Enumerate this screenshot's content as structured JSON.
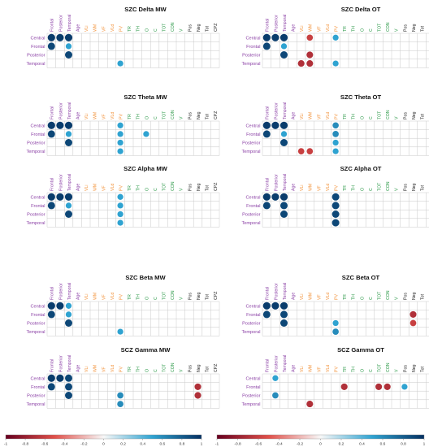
{
  "colors": {
    "purple": "#8a3fa5",
    "orange": "#f2923a",
    "green": "#2e9a4a",
    "black": "#222222",
    "grid": "#c9c9c9",
    "cb_neg_strong": "#67001f",
    "cb_neg_mid": "#e0504a",
    "cb_zero": "#f7f7f7",
    "cb_pos_mid": "#2fa3d1",
    "cb_pos_strong": "#053061"
  },
  "rows": [
    "Central",
    "Frontal",
    "Posterior",
    "Temporal"
  ],
  "columns": [
    {
      "label": "Frontal",
      "group": "purple"
    },
    {
      "label": "Posterior",
      "group": "purple"
    },
    {
      "label": "Temporal",
      "group": "purple"
    },
    {
      "label": "Age",
      "group": "purple"
    },
    {
      "label": "VLi",
      "group": "orange"
    },
    {
      "label": "WM",
      "group": "orange"
    },
    {
      "label": "VF",
      "group": "orange"
    },
    {
      "label": "VLd",
      "group": "orange"
    },
    {
      "label": "PV",
      "group": "orange"
    },
    {
      "label": "TR",
      "group": "green"
    },
    {
      "label": "TH",
      "group": "green"
    },
    {
      "label": "O",
      "group": "green"
    },
    {
      "label": "C",
      "group": "green"
    },
    {
      "label": "TOT",
      "group": "green"
    },
    {
      "label": "CON",
      "group": "green"
    },
    {
      "label": "V",
      "group": "green"
    },
    {
      "label": "Pos",
      "group": "black"
    },
    {
      "label": "Neg",
      "group": "black"
    },
    {
      "label": "Tot",
      "group": "black"
    },
    {
      "label": "CPZ",
      "group": "black"
    }
  ],
  "chart_data": [
    {
      "type": "heatmap",
      "title": "SZC Delta MW",
      "cells": [
        {
          "row": "Central",
          "col": "Frontal",
          "r": 0.95
        },
        {
          "row": "Central",
          "col": "Posterior",
          "r": 0.95
        },
        {
          "row": "Central",
          "col": "Temporal",
          "r": 0.95
        },
        {
          "row": "Frontal",
          "col": "Frontal",
          "r": 0.9
        },
        {
          "row": "Frontal",
          "col": "Temporal",
          "r": 0.5
        },
        {
          "row": "Posterior",
          "col": "Temporal",
          "r": 0.9
        },
        {
          "row": "Temporal",
          "col": "PV",
          "r": 0.5
        }
      ]
    },
    {
      "type": "heatmap",
      "title": "SZC Delta OT",
      "cells": [
        {
          "row": "Central",
          "col": "Frontal",
          "r": 0.95
        },
        {
          "row": "Central",
          "col": "Posterior",
          "r": 0.95
        },
        {
          "row": "Central",
          "col": "Temporal",
          "r": 0.95
        },
        {
          "row": "Central",
          "col": "WM",
          "r": -0.6
        },
        {
          "row": "Central",
          "col": "PV",
          "r": 0.5
        },
        {
          "row": "Frontal",
          "col": "Frontal",
          "r": 0.9
        },
        {
          "row": "Frontal",
          "col": "Temporal",
          "r": 0.5
        },
        {
          "row": "Posterior",
          "col": "Temporal",
          "r": 0.9
        },
        {
          "row": "Posterior",
          "col": "WM",
          "r": -0.7
        },
        {
          "row": "Temporal",
          "col": "VLi",
          "r": -0.7
        },
        {
          "row": "Temporal",
          "col": "WM",
          "r": -0.7
        },
        {
          "row": "Temporal",
          "col": "PV",
          "r": 0.5
        }
      ]
    },
    {
      "type": "heatmap",
      "title": "SZC Theta MW",
      "cells": [
        {
          "row": "Central",
          "col": "Frontal",
          "r": 0.95
        },
        {
          "row": "Central",
          "col": "Posterior",
          "r": 0.95
        },
        {
          "row": "Central",
          "col": "Temporal",
          "r": 0.95
        },
        {
          "row": "Central",
          "col": "PV",
          "r": 0.5
        },
        {
          "row": "Frontal",
          "col": "Frontal",
          "r": 0.9
        },
        {
          "row": "Frontal",
          "col": "Temporal",
          "r": 0.5
        },
        {
          "row": "Frontal",
          "col": "PV",
          "r": 0.5
        },
        {
          "row": "Frontal",
          "col": "O",
          "r": 0.5
        },
        {
          "row": "Posterior",
          "col": "Temporal",
          "r": 0.9
        },
        {
          "row": "Posterior",
          "col": "PV",
          "r": 0.5
        },
        {
          "row": "Temporal",
          "col": "PV",
          "r": 0.5
        }
      ]
    },
    {
      "type": "heatmap",
      "title": "SZC Theta OT",
      "cells": [
        {
          "row": "Central",
          "col": "Frontal",
          "r": 0.95
        },
        {
          "row": "Central",
          "col": "Posterior",
          "r": 0.95
        },
        {
          "row": "Central",
          "col": "Temporal",
          "r": 0.95
        },
        {
          "row": "Central",
          "col": "PV",
          "r": 0.6
        },
        {
          "row": "Frontal",
          "col": "Frontal",
          "r": 0.9
        },
        {
          "row": "Frontal",
          "col": "Temporal",
          "r": 0.5
        },
        {
          "row": "Frontal",
          "col": "PV",
          "r": 0.6
        },
        {
          "row": "Posterior",
          "col": "Temporal",
          "r": 0.9
        },
        {
          "row": "Posterior",
          "col": "PV",
          "r": 0.5
        },
        {
          "row": "Temporal",
          "col": "VLi",
          "r": -0.6
        },
        {
          "row": "Temporal",
          "col": "WM",
          "r": -0.6
        },
        {
          "row": "Temporal",
          "col": "PV",
          "r": 0.5
        }
      ]
    },
    {
      "type": "heatmap",
      "title": "SZC Alpha MW",
      "cells": [
        {
          "row": "Central",
          "col": "Frontal",
          "r": 0.95
        },
        {
          "row": "Central",
          "col": "Posterior",
          "r": 0.95
        },
        {
          "row": "Central",
          "col": "Temporal",
          "r": 0.95
        },
        {
          "row": "Central",
          "col": "PV",
          "r": 0.5
        },
        {
          "row": "Frontal",
          "col": "Frontal",
          "r": 0.9
        },
        {
          "row": "Frontal",
          "col": "Temporal",
          "r": 0.5
        },
        {
          "row": "Frontal",
          "col": "PV",
          "r": 0.5
        },
        {
          "row": "Posterior",
          "col": "Temporal",
          "r": 0.9
        },
        {
          "row": "Posterior",
          "col": "PV",
          "r": 0.5
        },
        {
          "row": "Temporal",
          "col": "PV",
          "r": 0.5
        }
      ]
    },
    {
      "type": "heatmap",
      "title": "SZC Alpha OT",
      "cells": [
        {
          "row": "Central",
          "col": "Frontal",
          "r": 0.95
        },
        {
          "row": "Central",
          "col": "Posterior",
          "r": 0.95
        },
        {
          "row": "Central",
          "col": "Temporal",
          "r": 0.95
        },
        {
          "row": "Central",
          "col": "PV",
          "r": 0.9
        },
        {
          "row": "Frontal",
          "col": "Frontal",
          "r": 0.9
        },
        {
          "row": "Frontal",
          "col": "Temporal",
          "r": 0.9
        },
        {
          "row": "Frontal",
          "col": "PV",
          "r": 0.9
        },
        {
          "row": "Posterior",
          "col": "Temporal",
          "r": 0.9
        },
        {
          "row": "Posterior",
          "col": "PV",
          "r": 0.9
        },
        {
          "row": "Temporal",
          "col": "PV",
          "r": 0.9
        }
      ]
    },
    {
      "type": "heatmap",
      "title": "SZC Beta MW",
      "cells": [
        {
          "row": "Central",
          "col": "Frontal",
          "r": 0.95
        },
        {
          "row": "Central",
          "col": "Posterior",
          "r": 0.95
        },
        {
          "row": "Central",
          "col": "Temporal",
          "r": 0.5
        },
        {
          "row": "Frontal",
          "col": "Frontal",
          "r": 0.9
        },
        {
          "row": "Frontal",
          "col": "Temporal",
          "r": 0.5
        },
        {
          "row": "Posterior",
          "col": "Temporal",
          "r": 0.9
        },
        {
          "row": "Temporal",
          "col": "PV",
          "r": 0.5
        }
      ]
    },
    {
      "type": "heatmap",
      "title": "SZC Beta OT",
      "cells": [
        {
          "row": "Central",
          "col": "Frontal",
          "r": 0.95
        },
        {
          "row": "Central",
          "col": "Posterior",
          "r": 0.95
        },
        {
          "row": "Central",
          "col": "Temporal",
          "r": 0.95
        },
        {
          "row": "Frontal",
          "col": "Frontal",
          "r": 0.9
        },
        {
          "row": "Frontal",
          "col": "Temporal",
          "r": 0.9
        },
        {
          "row": "Frontal",
          "col": "Neg",
          "r": -0.7
        },
        {
          "row": "Posterior",
          "col": "Temporal",
          "r": 0.9
        },
        {
          "row": "Posterior",
          "col": "PV",
          "r": 0.5
        },
        {
          "row": "Posterior",
          "col": "Neg",
          "r": -0.6
        },
        {
          "row": "Temporal",
          "col": "PV",
          "r": 0.6
        }
      ]
    },
    {
      "type": "heatmap",
      "title": "SCZ Gamma MW",
      "cells": [
        {
          "row": "Central",
          "col": "Frontal",
          "r": 0.95
        },
        {
          "row": "Central",
          "col": "Posterior",
          "r": 0.95
        },
        {
          "row": "Central",
          "col": "Temporal",
          "r": 0.9
        },
        {
          "row": "Frontal",
          "col": "Frontal",
          "r": 0.9
        },
        {
          "row": "Frontal",
          "col": "Temporal",
          "r": 0.9
        },
        {
          "row": "Frontal",
          "col": "Neg",
          "r": -0.7
        },
        {
          "row": "Posterior",
          "col": "Temporal",
          "r": 0.9
        },
        {
          "row": "Posterior",
          "col": "PV",
          "r": 0.6
        },
        {
          "row": "Posterior",
          "col": "Neg",
          "r": -0.7
        },
        {
          "row": "Temporal",
          "col": "PV",
          "r": 0.6
        }
      ]
    },
    {
      "type": "heatmap",
      "title": "SCZ Gamma OT",
      "cells": [
        {
          "row": "Central",
          "col": "Posterior",
          "r": 0.5
        },
        {
          "row": "Frontal",
          "col": "TR",
          "r": -0.7
        },
        {
          "row": "Frontal",
          "col": "TOT",
          "r": -0.7
        },
        {
          "row": "Frontal",
          "col": "CON",
          "r": -0.7
        },
        {
          "row": "Frontal",
          "col": "Pos",
          "r": 0.5
        },
        {
          "row": "Posterior",
          "col": "Posterior",
          "r": 0.6
        },
        {
          "row": "Temporal",
          "col": "WM",
          "r": -0.7
        }
      ]
    }
  ],
  "colorbars": [
    {
      "range": [
        -1,
        1
      ],
      "ticks": [
        "-1",
        "-0.8",
        "-0.6",
        "-0.4",
        "-0.2",
        "0",
        "0.2",
        "0.4",
        "0.6",
        "0.8",
        "1"
      ]
    },
    {
      "range": [
        -1,
        1
      ],
      "ticks": [
        "-1",
        "-0.8",
        "-0.6",
        "-0.4",
        "-0.2",
        "0",
        "0.2",
        "0.4",
        "0.6",
        "0.8",
        "1"
      ]
    }
  ]
}
